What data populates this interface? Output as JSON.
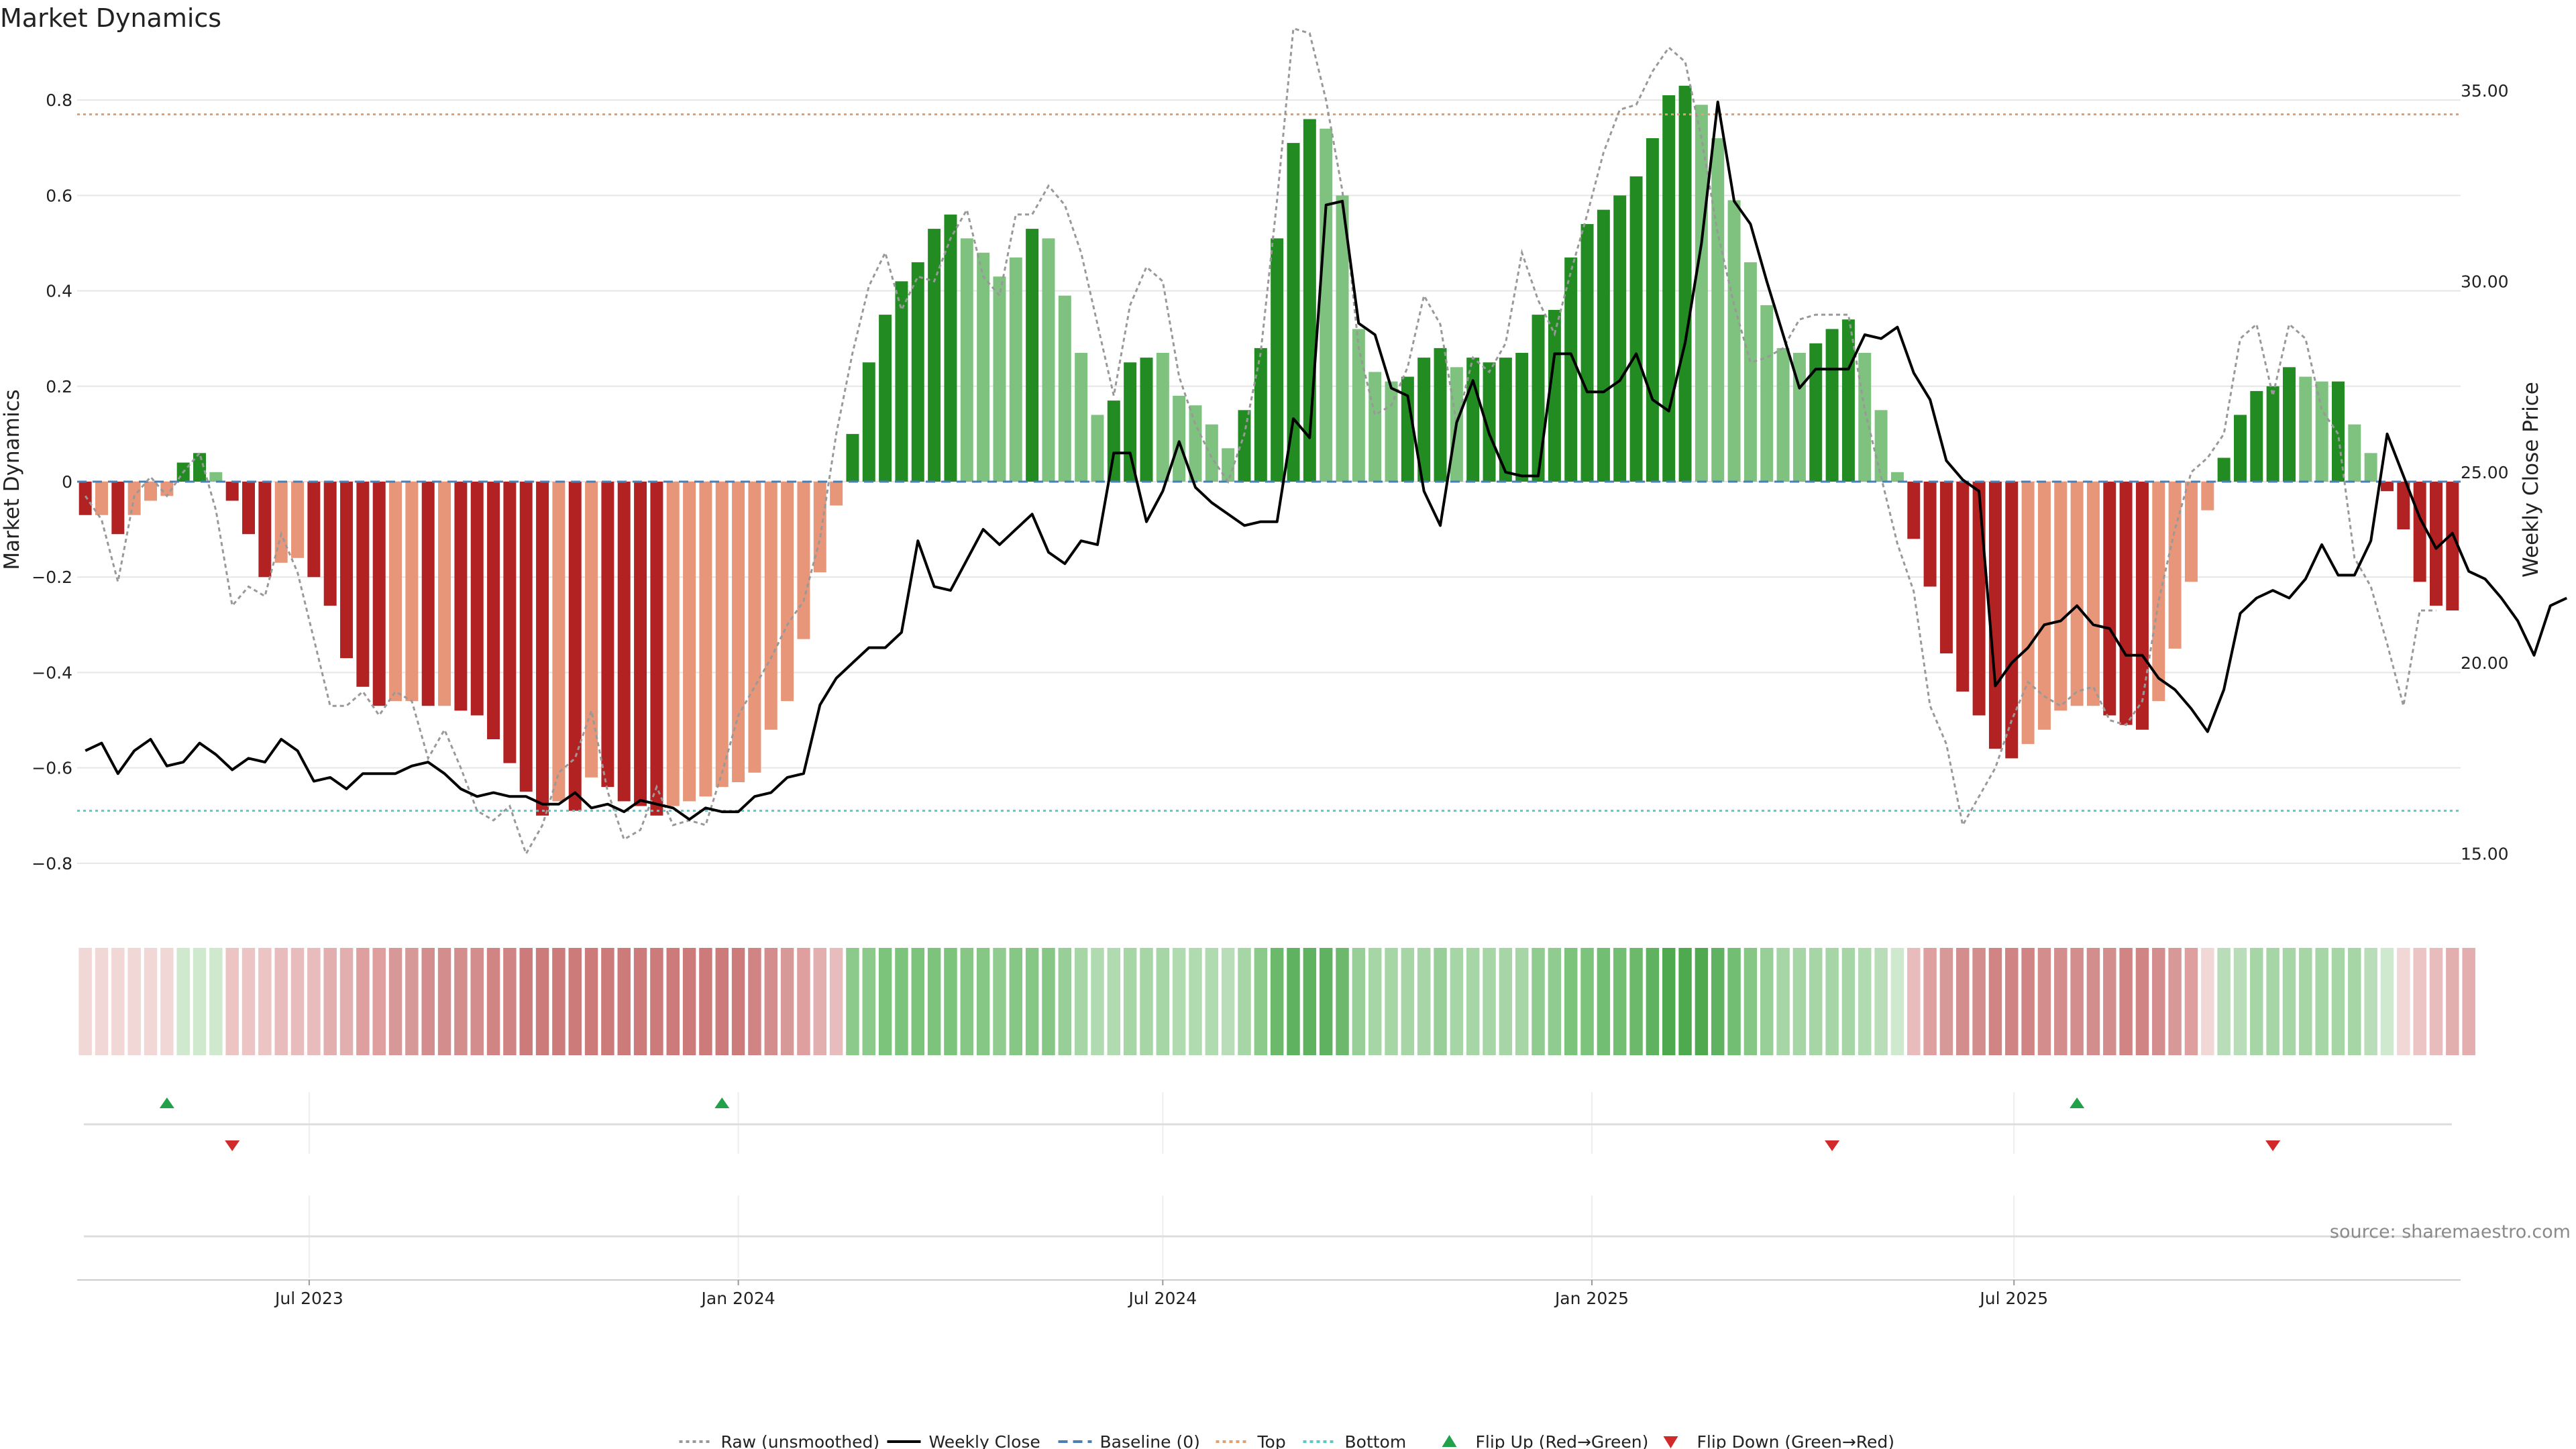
{
  "chart_data": {
    "type": "bar",
    "title": "Market Dynamics",
    "ylabel_left": "Market Dynamics",
    "ylabel_right": "Weekly Close Price",
    "ylim_left": [
      -0.9,
      0.9
    ],
    "ylim_right": [
      13.5,
      36.0
    ],
    "y_ticks_left": [
      "−0.8",
      "−0.6",
      "−0.4",
      "−0.2",
      "0",
      "0.2",
      "0.4",
      "0.6",
      "0.8"
    ],
    "y_ticks_left_values": [
      -0.8,
      -0.6,
      -0.4,
      -0.2,
      0,
      0.2,
      0.4,
      0.6,
      0.8
    ],
    "y_ticks_right": [
      "15.00",
      "20.00",
      "25.00",
      "30.00",
      "35.00"
    ],
    "y_ticks_right_values": [
      15,
      20,
      25,
      30,
      35
    ],
    "x_start": "2023-03-27",
    "x_ticks": [
      "Jul 2023",
      "Jan 2024",
      "Jul 2024",
      "Jan 2025",
      "Jul 2025"
    ],
    "x_tick_dates": [
      "2023-07-01",
      "2024-01-01",
      "2024-07-01",
      "2025-01-01",
      "2025-07-01"
    ],
    "top_level": 0.77,
    "bottom_level": -0.69,
    "grid": true,
    "legend_position": "bottom-center",
    "legend": [
      {
        "label": "Raw (unsmoothed)",
        "kind": "dotted-line",
        "color": "#999999"
      },
      {
        "label": "Weekly Close",
        "kind": "line",
        "color": "#000000"
      },
      {
        "label": "Baseline (0)",
        "kind": "dashed-line",
        "color": "#4a7fb5"
      },
      {
        "label": "Top",
        "kind": "dotted-line",
        "color": "#e0a070"
      },
      {
        "label": "Bottom",
        "kind": "dotted-line",
        "color": "#5cc8c8"
      },
      {
        "label": "Flip Up (Red→Green)",
        "kind": "triangle-up",
        "color": "#22a04a"
      },
      {
        "label": "Flip Down (Green→Red)",
        "kind": "triangle-down",
        "color": "#d02a2a"
      }
    ],
    "series": [
      {
        "name": "Market Dynamics",
        "values": [
          -0.07,
          -0.07,
          -0.11,
          -0.07,
          -0.04,
          -0.03,
          0.04,
          0.06,
          0.02,
          -0.04,
          -0.11,
          -0.2,
          -0.17,
          -0.16,
          -0.2,
          -0.26,
          -0.37,
          -0.43,
          -0.47,
          -0.46,
          -0.46,
          -0.47,
          -0.47,
          -0.48,
          -0.49,
          -0.54,
          -0.59,
          -0.65,
          -0.7,
          -0.67,
          -0.69,
          -0.62,
          -0.64,
          -0.67,
          -0.68,
          -0.7,
          -0.68,
          -0.67,
          -0.66,
          -0.64,
          -0.63,
          -0.61,
          -0.52,
          -0.46,
          -0.33,
          -0.19,
          -0.05,
          0.1,
          0.25,
          0.35,
          0.42,
          0.46,
          0.53,
          0.56,
          0.51,
          0.48,
          0.43,
          0.47,
          0.53,
          0.51,
          0.39,
          0.27,
          0.14,
          0.17,
          0.25,
          0.26,
          0.27,
          0.18,
          0.16,
          0.12,
          0.07,
          0.15,
          0.28,
          0.51,
          0.71,
          0.76,
          0.74,
          0.6,
          0.32,
          0.23,
          0.21,
          0.22,
          0.26,
          0.28,
          0.24,
          0.26,
          0.25,
          0.26,
          0.27,
          0.35,
          0.36,
          0.47,
          0.54,
          0.57,
          0.6,
          0.64,
          0.72,
          0.81,
          0.83,
          0.79,
          0.72,
          0.59,
          0.46,
          0.37,
          0.28,
          0.27,
          0.29,
          0.32,
          0.34,
          0.27,
          0.15,
          0.02,
          -0.12,
          -0.22,
          -0.36,
          -0.44,
          -0.49,
          -0.56,
          -0.58,
          -0.55,
          -0.52,
          -0.48,
          -0.47,
          -0.47,
          -0.49,
          -0.51,
          -0.52,
          -0.46,
          -0.35,
          -0.21,
          -0.06,
          0.05,
          0.14,
          0.19,
          0.2,
          0.24,
          0.22,
          0.21,
          0.21,
          0.12,
          0.06,
          -0.02,
          -0.1,
          -0.21,
          -0.26,
          -0.27
        ],
        "colors": [
          "#b22222",
          "#e8967a",
          "#b22222",
          "#e8967a",
          "#e8967a",
          "#e8967a",
          "#228b22",
          "#228b22",
          "#7fc27f",
          "#b22222",
          "#b22222",
          "#b22222",
          "#e8967a",
          "#e8967a",
          "#b22222",
          "#b22222",
          "#b22222",
          "#b22222",
          "#b22222",
          "#e8967a",
          "#e8967a",
          "#b22222",
          "#e8967a",
          "#b22222",
          "#b22222",
          "#b22222",
          "#b22222",
          "#b22222",
          "#b22222",
          "#e8967a",
          "#b22222",
          "#e8967a",
          "#b22222",
          "#b22222",
          "#b22222",
          "#b22222",
          "#e8967a",
          "#e8967a",
          "#e8967a",
          "#e8967a",
          "#e8967a",
          "#e8967a",
          "#e8967a",
          "#e8967a",
          "#e8967a",
          "#e8967a",
          "#e8967a",
          "#228b22",
          "#228b22",
          "#228b22",
          "#228b22",
          "#228b22",
          "#228b22",
          "#228b22",
          "#7fc27f",
          "#7fc27f",
          "#7fc27f",
          "#7fc27f",
          "#228b22",
          "#7fc27f",
          "#7fc27f",
          "#7fc27f",
          "#7fc27f",
          "#228b22",
          "#228b22",
          "#228b22",
          "#7fc27f",
          "#7fc27f",
          "#7fc27f",
          "#7fc27f",
          "#7fc27f",
          "#228b22",
          "#228b22",
          "#228b22",
          "#228b22",
          "#228b22",
          "#7fc27f",
          "#7fc27f",
          "#7fc27f",
          "#7fc27f",
          "#7fc27f",
          "#228b22",
          "#228b22",
          "#228b22",
          "#7fc27f",
          "#228b22",
          "#228b22",
          "#228b22",
          "#228b22",
          "#228b22",
          "#228b22",
          "#228b22",
          "#228b22",
          "#228b22",
          "#228b22",
          "#228b22",
          "#228b22",
          "#228b22",
          "#228b22",
          "#7fc27f",
          "#7fc27f",
          "#7fc27f",
          "#7fc27f",
          "#7fc27f",
          "#7fc27f",
          "#7fc27f",
          "#228b22",
          "#228b22",
          "#228b22",
          "#7fc27f",
          "#7fc27f",
          "#7fc27f",
          "#b22222",
          "#b22222",
          "#b22222",
          "#b22222",
          "#b22222",
          "#b22222",
          "#b22222",
          "#e8967a",
          "#e8967a",
          "#e8967a",
          "#e8967a",
          "#e8967a",
          "#b22222",
          "#b22222",
          "#b22222",
          "#e8967a",
          "#e8967a",
          "#e8967a",
          "#e8967a",
          "#228b22",
          "#228b22",
          "#228b22",
          "#228b22",
          "#228b22",
          "#7fc27f",
          "#7fc27f",
          "#228b22",
          "#7fc27f",
          "#7fc27f",
          "#b22222",
          "#b22222",
          "#b22222",
          "#b22222",
          "#b22222"
        ]
      },
      {
        "name": "Raw (unsmoothed)",
        "values": [
          -0.03,
          -0.08,
          -0.21,
          -0.03,
          0.01,
          -0.03,
          0.02,
          0.06,
          -0.06,
          -0.26,
          -0.22,
          -0.24,
          -0.11,
          -0.19,
          -0.33,
          -0.47,
          -0.47,
          -0.44,
          -0.49,
          -0.44,
          -0.46,
          -0.58,
          -0.52,
          -0.6,
          -0.69,
          -0.71,
          -0.68,
          -0.78,
          -0.72,
          -0.61,
          -0.58,
          -0.48,
          -0.65,
          -0.75,
          -0.73,
          -0.64,
          -0.72,
          -0.71,
          -0.72,
          -0.61,
          -0.49,
          -0.43,
          -0.37,
          -0.3,
          -0.25,
          -0.12,
          0.1,
          0.27,
          0.41,
          0.48,
          0.36,
          0.43,
          0.42,
          0.51,
          0.57,
          0.43,
          0.39,
          0.56,
          0.56,
          0.62,
          0.58,
          0.48,
          0.33,
          0.18,
          0.37,
          0.45,
          0.42,
          0.22,
          0.12,
          0.05,
          0.0,
          0.1,
          0.27,
          0.59,
          0.95,
          0.94,
          0.8,
          0.61,
          0.28,
          0.14,
          0.16,
          0.24,
          0.39,
          0.33,
          0.12,
          0.26,
          0.23,
          0.29,
          0.48,
          0.38,
          0.31,
          0.44,
          0.56,
          0.69,
          0.78,
          0.79,
          0.86,
          0.91,
          0.88,
          0.72,
          0.52,
          0.37,
          0.25,
          0.26,
          0.28,
          0.34,
          0.35,
          0.35,
          0.35,
          0.15,
          0.01,
          -0.13,
          -0.23,
          -0.47,
          -0.55,
          -0.72,
          -0.66,
          -0.6,
          -0.5,
          -0.42,
          -0.45,
          -0.47,
          -0.44,
          -0.43,
          -0.5,
          -0.51,
          -0.46,
          -0.25,
          -0.1,
          0.02,
          0.05,
          0.1,
          0.3,
          0.33,
          0.18,
          0.33,
          0.3,
          0.15,
          0.1,
          -0.16,
          -0.22,
          -0.34,
          -0.47,
          -0.27,
          -0.27
        ]
      },
      {
        "name": "Weekly Close",
        "values": [
          17.7,
          17.9,
          17.1,
          17.7,
          18.0,
          17.3,
          17.4,
          17.9,
          17.6,
          17.2,
          17.5,
          17.4,
          18.0,
          17.7,
          16.9,
          17.0,
          16.7,
          17.1,
          17.1,
          17.1,
          17.3,
          17.4,
          17.1,
          16.7,
          16.5,
          16.6,
          16.5,
          16.5,
          16.3,
          16.3,
          16.6,
          16.2,
          16.3,
          16.1,
          16.4,
          16.3,
          16.2,
          15.9,
          16.2,
          16.1,
          16.1,
          16.5,
          16.6,
          17.0,
          17.1,
          18.9,
          19.6,
          20.0,
          20.4,
          20.4,
          20.8,
          23.2,
          22.0,
          21.9,
          22.7,
          23.5,
          23.1,
          23.5,
          23.9,
          22.9,
          22.6,
          23.2,
          23.1,
          25.5,
          25.5,
          23.7,
          24.5,
          25.8,
          24.6,
          24.2,
          23.9,
          23.6,
          23.7,
          23.7,
          26.4,
          25.9,
          32.0,
          32.1,
          28.9,
          28.6,
          27.2,
          27.0,
          24.5,
          23.6,
          26.3,
          27.4,
          26.0,
          25.0,
          24.9,
          24.9,
          28.1,
          28.1,
          27.1,
          27.1,
          27.4,
          28.1,
          26.9,
          26.6,
          28.4,
          31.0,
          34.7,
          32.1,
          31.5,
          30.0,
          28.6,
          27.2,
          27.7,
          27.7,
          27.7,
          28.6,
          28.5,
          28.8,
          27.6,
          26.9,
          25.3,
          24.8,
          24.5,
          19.4,
          20.0,
          20.4,
          21.0,
          21.1,
          21.5,
          21.0,
          20.9,
          20.2,
          20.2,
          19.6,
          19.3,
          18.8,
          18.2,
          19.3,
          21.3,
          21.7,
          21.9,
          21.7,
          22.2,
          23.1,
          22.3,
          22.3,
          23.2,
          26.0,
          24.9,
          23.8,
          23.0,
          23.4,
          22.4,
          22.2,
          21.7,
          21.1,
          20.2,
          21.5,
          21.7
        ],
        "color": "#000000"
      }
    ],
    "flips_up_dates": [
      "2023-05-01",
      "2023-12-25",
      "2025-07-28"
    ],
    "flips_down_dates": [
      "2023-05-29",
      "2025-04-14",
      "2025-10-20"
    ],
    "heat_strip_colors": [
      "#f1d7d6",
      "#f1d7d6",
      "#f1d7d6",
      "#f1d7d6",
      "#f1d7d6",
      "#f1d7d6",
      "#cfe9cf",
      "#cfe9cf",
      "#cfe9cf",
      "#ecc4c3",
      "#ecc4c3",
      "#ecc4c3",
      "#e8bcbc",
      "#e8bcbc",
      "#e8bcbc",
      "#e3aeae",
      "#e3aeae",
      "#de9f9e",
      "#de9f9e",
      "#d79898",
      "#d79898",
      "#d38d8d",
      "#d38d8d",
      "#d38d8d",
      "#d38d8d",
      "#d08484",
      "#d08484",
      "#cd7a7a",
      "#cd7a7a",
      "#cd7a7a",
      "#cd7a7a",
      "#cd7a7a",
      "#cd7a7a",
      "#cd7a7a",
      "#cd7a7a",
      "#cd7a7a",
      "#cd7a7a",
      "#cd7a7a",
      "#cd7a7a",
      "#cd7a7a",
      "#cd7a7a",
      "#d08484",
      "#d38d8d",
      "#d79898",
      "#de9f9e",
      "#e3aeae",
      "#e8bcbc",
      "#8cca8c",
      "#8cca8c",
      "#7cc37c",
      "#7cc37c",
      "#7cc37c",
      "#7cc37c",
      "#7cc37c",
      "#86c786",
      "#86c786",
      "#90cb90",
      "#86c786",
      "#86c786",
      "#86c786",
      "#98cf98",
      "#a6d5a6",
      "#b0dab0",
      "#b0dab0",
      "#a6d5a6",
      "#a6d5a6",
      "#a6d5a6",
      "#b0dab0",
      "#b0dab0",
      "#b0dab0",
      "#b8ddb8",
      "#a6d5a6",
      "#8cca8c",
      "#6cb96c",
      "#5fb25f",
      "#5fb25f",
      "#5fb25f",
      "#6cb96c",
      "#98cf98",
      "#a6d5a6",
      "#a6d5a6",
      "#a6d5a6",
      "#a6d5a6",
      "#98cf98",
      "#a6d5a6",
      "#a6d5a6",
      "#a6d5a6",
      "#a6d5a6",
      "#a6d5a6",
      "#90cb90",
      "#90cb90",
      "#7cc37c",
      "#7cc37c",
      "#72be72",
      "#72be72",
      "#6cb96c",
      "#5fb25f",
      "#4faa4f",
      "#4faa4f",
      "#4faa4f",
      "#5fb25f",
      "#72be72",
      "#86c786",
      "#98cf98",
      "#a6d5a6",
      "#a6d5a6",
      "#a6d5a6",
      "#a6d5a6",
      "#a6d5a6",
      "#b0dab0",
      "#b8ddb8",
      "#cfe9cf",
      "#e8bcbc",
      "#de9f9e",
      "#d79898",
      "#d38d8d",
      "#d38d8d",
      "#d08484",
      "#d08484",
      "#d08484",
      "#d38d8d",
      "#d38d8d",
      "#d38d8d",
      "#d38d8d",
      "#d38d8d",
      "#d08484",
      "#d08484",
      "#d38d8d",
      "#d79898",
      "#de9f9e",
      "#f1d7d6",
      "#b8ddb8",
      "#b8ddb8",
      "#a6d5a6",
      "#a6d5a6",
      "#a6d5a6",
      "#a6d5a6",
      "#a6d5a6",
      "#a6d5a6",
      "#a6d5a6",
      "#b8ddb8",
      "#cfe9cf",
      "#f1d7d6",
      "#ecc4c3",
      "#e8bcbc",
      "#e3aeae",
      "#e3aeae"
    ]
  },
  "source_text": "source: sharemaestro.com",
  "colors": {
    "grid": "#e6e6e6",
    "top_line": "#e0a070",
    "bottom_line": "#5cc8c8",
    "baseline": "#4a7fb5",
    "raw_line": "#999999",
    "close_line": "#000000",
    "flip_up": "#22a04a",
    "flip_down": "#d02a2a"
  }
}
